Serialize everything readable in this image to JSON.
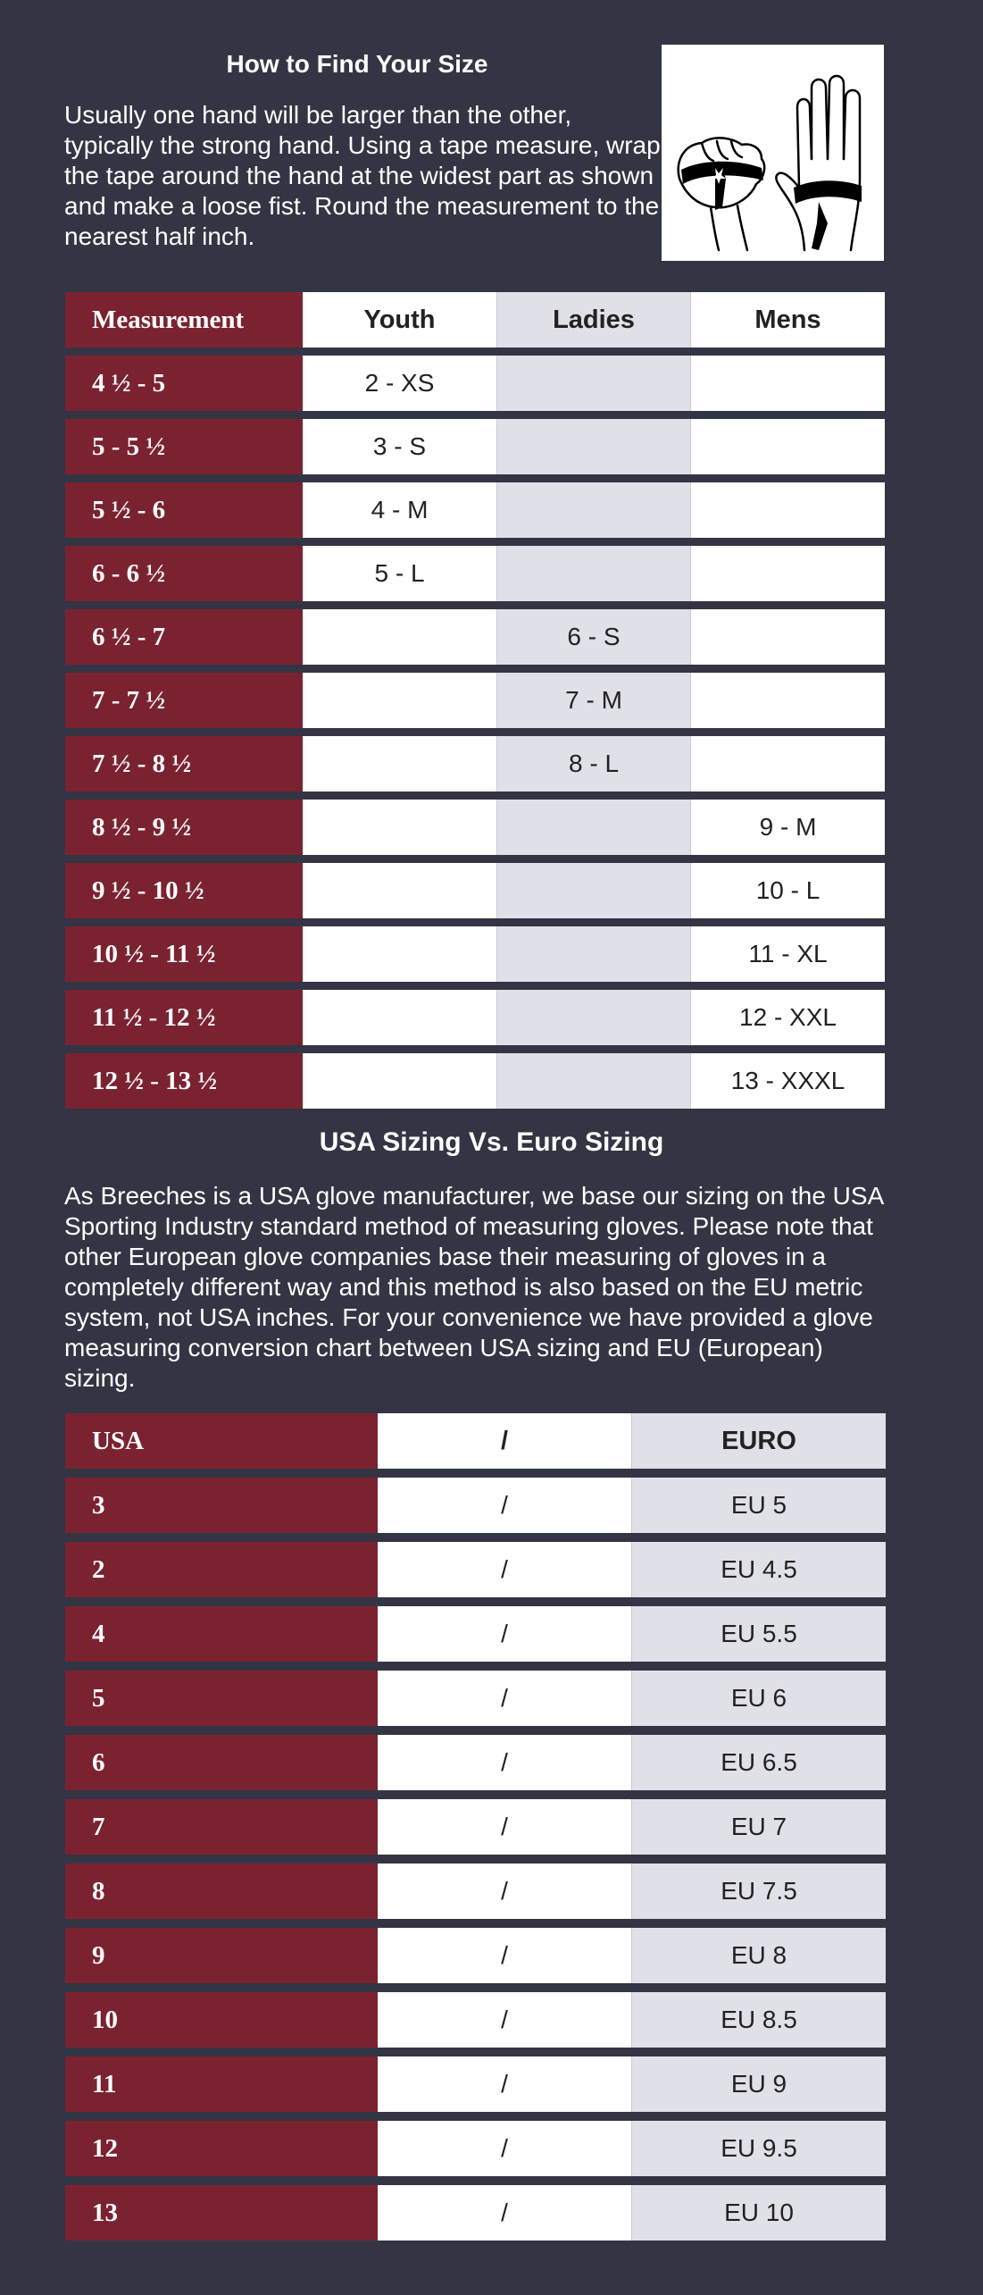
{
  "intro": {
    "title": "How to Find Your Size",
    "text": "Usually one hand will be larger than the other, typically the strong hand. Using a tape measure, wrap the tape around the hand at the widest part as shown and make a loose fist. Round the measurement to the nearest half inch."
  },
  "size_table": {
    "headers": {
      "measurement": "Measurement",
      "youth": "Youth",
      "ladies": "Ladies",
      "mens": "Mens"
    },
    "rows": [
      {
        "measurement": "4 ½ - 5",
        "youth": "2 - XS",
        "ladies": "",
        "mens": ""
      },
      {
        "measurement": "5 - 5 ½",
        "youth": "3 - S",
        "ladies": "",
        "mens": ""
      },
      {
        "measurement": "5 ½ - 6",
        "youth": "4 - M",
        "ladies": "",
        "mens": ""
      },
      {
        "measurement": "6 - 6 ½",
        "youth": "5 - L",
        "ladies": "",
        "mens": ""
      },
      {
        "measurement": "6 ½ - 7",
        "youth": "",
        "ladies": "6 - S",
        "mens": ""
      },
      {
        "measurement": "7 - 7 ½",
        "youth": "",
        "ladies": "7 - M",
        "mens": ""
      },
      {
        "measurement": "7 ½ - 8 ½",
        "youth": "",
        "ladies": "8 - L",
        "mens": ""
      },
      {
        "measurement": "8 ½ - 9 ½",
        "youth": "",
        "ladies": "",
        "mens": "9 - M"
      },
      {
        "measurement": "9 ½ - 10 ½",
        "youth": "",
        "ladies": "",
        "mens": "10 - L"
      },
      {
        "measurement": "10 ½ - 11 ½",
        "youth": "",
        "ladies": "",
        "mens": "11 - XL"
      },
      {
        "measurement": "11 ½ - 12 ½",
        "youth": "",
        "ladies": "",
        "mens": "12 - XXL"
      },
      {
        "measurement": "12 ½ - 13 ½",
        "youth": "",
        "ladies": "",
        "mens": "13 - XXXL"
      }
    ]
  },
  "section2": {
    "title": "USA Sizing Vs. Euro Sizing",
    "text": "As Breeches is a USA glove manufacturer, we base our sizing on the USA Sporting Industry standard method of measuring gloves. Please note that other European glove companies base their measuring of gloves in a completely different way and this method is also based on the EU metric system, not USA inches. For your convenience we have provided a glove measuring conversion chart between USA sizing and EU (European) sizing."
  },
  "conversion_table": {
    "headers": {
      "usa": "USA",
      "sep": "/",
      "euro": "EURO"
    },
    "rows": [
      {
        "usa": "3",
        "sep": "/",
        "euro": "EU 5"
      },
      {
        "usa": "2",
        "sep": "/",
        "euro": "EU 4.5"
      },
      {
        "usa": "4",
        "sep": "/",
        "euro": "EU 5.5"
      },
      {
        "usa": "5",
        "sep": "/",
        "euro": "EU 6"
      },
      {
        "usa": "6",
        "sep": "/",
        "euro": "EU 6.5"
      },
      {
        "usa": "7",
        "sep": "/",
        "euro": "EU 7"
      },
      {
        "usa": "8",
        "sep": "/",
        "euro": "EU 7.5"
      },
      {
        "usa": "9",
        "sep": "/",
        "euro": "EU 8"
      },
      {
        "usa": "10",
        "sep": "/",
        "euro": "EU 8.5"
      },
      {
        "usa": "11",
        "sep": "/",
        "euro": "EU 9"
      },
      {
        "usa": "12",
        "sep": "/",
        "euro": "EU 9.5"
      },
      {
        "usa": "13",
        "sep": "/",
        "euro": "EU 10"
      }
    ]
  },
  "colors": {
    "background": "#333544",
    "label_column": "#7b2230",
    "cell_white": "#ffffff",
    "cell_grey": "#e0e0e8"
  }
}
